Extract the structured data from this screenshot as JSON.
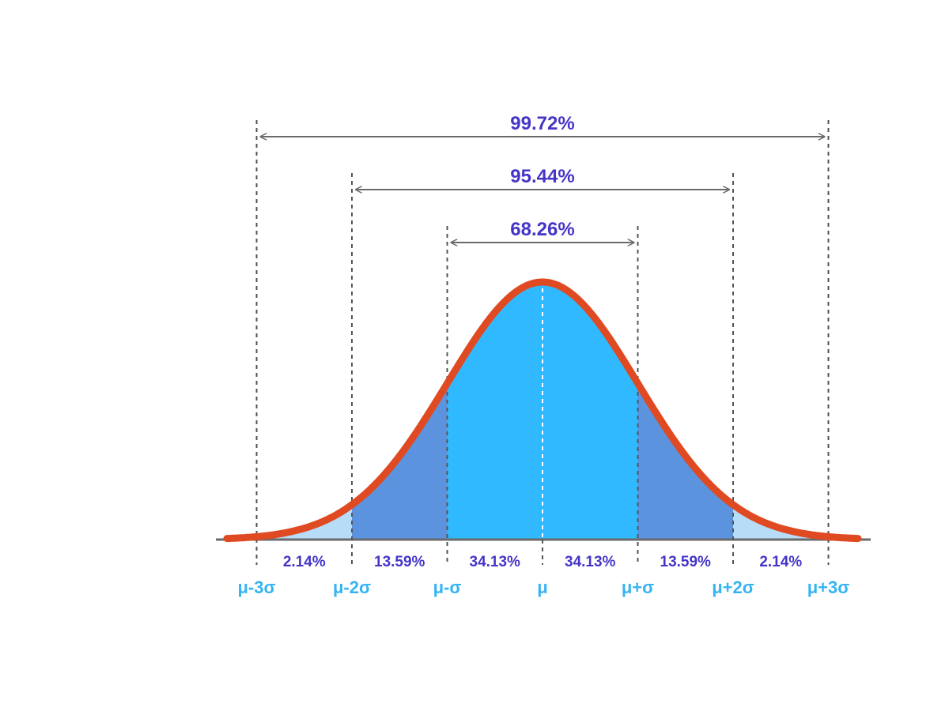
{
  "colors": {
    "curve": "#e04a22",
    "center_fill": "#31b9ff",
    "mid_fill": "#5b93de",
    "tail_fill": "#b7dcf7",
    "axis": "#6a6a6a",
    "guide": "#555555",
    "percent_text": "#4535c7",
    "sigma_text": "#35b4f4"
  },
  "spans": [
    {
      "label": "99.72%",
      "from_sigma": -3,
      "to_sigma": 3
    },
    {
      "label": "95.44%",
      "from_sigma": -2,
      "to_sigma": 2
    },
    {
      "label": "68.26%",
      "from_sigma": -1,
      "to_sigma": 1
    }
  ],
  "region_percentages": [
    "2.14%",
    "13.59%",
    "34.13%",
    "34.13%",
    "13.59%",
    "2.14%"
  ],
  "sigma_labels": [
    "μ-3σ",
    "μ-2σ",
    "μ-σ",
    "μ",
    "μ+σ",
    "μ+2σ",
    "μ+3σ"
  ]
}
